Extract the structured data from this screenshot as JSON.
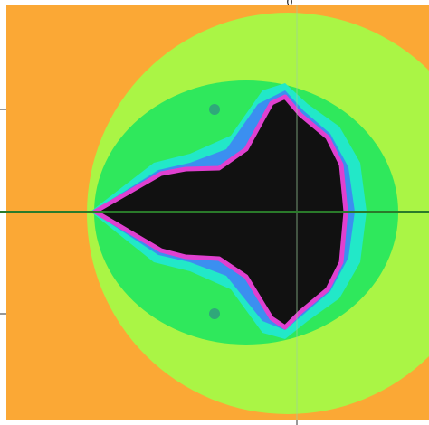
{
  "axis_label": "0"
}
